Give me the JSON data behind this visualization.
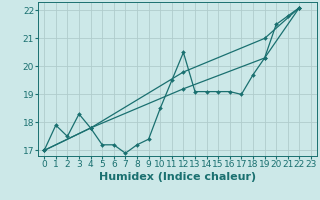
{
  "xlabel": "Humidex (Indice chaleur)",
  "background_color": "#cce8e8",
  "line_color": "#1a7070",
  "grid_color": "#b0cccc",
  "xlim": [
    -0.5,
    23.5
  ],
  "ylim": [
    16.8,
    22.3
  ],
  "xticks": [
    0,
    1,
    2,
    3,
    4,
    5,
    6,
    7,
    8,
    9,
    10,
    11,
    12,
    13,
    14,
    15,
    16,
    17,
    18,
    19,
    20,
    21,
    22,
    23
  ],
  "yticks": [
    17,
    18,
    19,
    20,
    21,
    22
  ],
  "line1_x": [
    0,
    1,
    2,
    3,
    4,
    5,
    6,
    7,
    8,
    9,
    10,
    11,
    12,
    13,
    14,
    15,
    16,
    17,
    18,
    19,
    20,
    21,
    22
  ],
  "line1_y": [
    17.0,
    17.9,
    17.5,
    18.3,
    17.8,
    17.2,
    17.2,
    16.9,
    17.2,
    17.4,
    18.5,
    19.5,
    20.5,
    19.1,
    19.1,
    19.1,
    19.1,
    19.0,
    19.7,
    20.3,
    21.5,
    21.8,
    22.1
  ],
  "line2_x": [
    0,
    4,
    12,
    19,
    22
  ],
  "line2_y": [
    17.0,
    17.8,
    19.8,
    21.0,
    22.1
  ],
  "line3_x": [
    0,
    4,
    12,
    19,
    22
  ],
  "line3_y": [
    17.0,
    17.8,
    19.2,
    20.3,
    22.1
  ],
  "xlabel_fontsize": 8,
  "tick_fontsize": 6.5
}
